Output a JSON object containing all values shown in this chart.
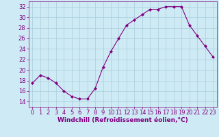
{
  "x": [
    0,
    1,
    2,
    3,
    4,
    5,
    6,
    7,
    8,
    9,
    10,
    11,
    12,
    13,
    14,
    15,
    16,
    17,
    18,
    19,
    20,
    21,
    22,
    23
  ],
  "y": [
    17.5,
    19.0,
    18.5,
    17.5,
    16.0,
    15.0,
    14.5,
    14.5,
    16.5,
    20.5,
    23.5,
    26.0,
    28.5,
    29.5,
    30.5,
    31.5,
    31.5,
    32.0,
    32.0,
    32.0,
    28.5,
    26.5,
    24.5,
    22.5
  ],
  "line_color": "#800080",
  "marker": "D",
  "marker_size": 2,
  "xlabel": "Windchill (Refroidissement éolien,°C)",
  "ylim": [
    13,
    33
  ],
  "xlim": [
    -0.5,
    23.5
  ],
  "yticks": [
    14,
    16,
    18,
    20,
    22,
    24,
    26,
    28,
    30,
    32
  ],
  "xticks": [
    0,
    1,
    2,
    3,
    4,
    5,
    6,
    7,
    8,
    9,
    10,
    11,
    12,
    13,
    14,
    15,
    16,
    17,
    18,
    19,
    20,
    21,
    22,
    23
  ],
  "bg_color": "#ceeaf4",
  "grid_color": "#aaccdd",
  "label_fontsize": 6.5,
  "tick_fontsize": 6
}
